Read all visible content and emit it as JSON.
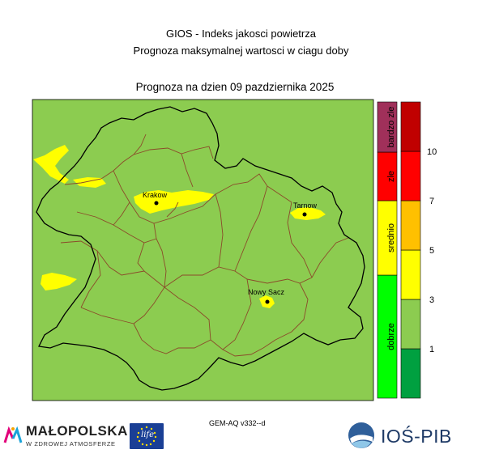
{
  "header": {
    "title_line1": "GIOS - Indeks jakosci powietrza",
    "title_line2": "Prognoza maksymalnej wartosci w ciagu doby",
    "forecast_date": "Prognoza na dzien  09 pazdziernika 2025"
  },
  "map": {
    "background_color": "#8ccc50",
    "zone_color": "#ffff00",
    "cities": [
      {
        "name": "Krakow"
      },
      {
        "name": "Tarnow"
      },
      {
        "name": "Nowy Sacz"
      }
    ]
  },
  "legend": {
    "categories": [
      {
        "label": "dobrze",
        "color": "#00ff00"
      },
      {
        "label": "srednio",
        "color": "#ffff00"
      },
      {
        "label": "zle",
        "color": "#ff0000"
      },
      {
        "label": "bardzo zle",
        "color": "#a0305a"
      }
    ],
    "scale_colors": [
      "#00a040",
      "#8ccc50",
      "#ffff00",
      "#ffc000",
      "#ff0000",
      "#c00000"
    ],
    "tick_labels": [
      "1",
      "3",
      "5",
      "7",
      "10"
    ]
  },
  "footer": {
    "model_version": "GEM-AQ v332--d",
    "logo_malopolska_text": "MAŁOPOLSKA",
    "logo_malopolska_subtitle": "W ZDROWEJ ATMOSFERZE",
    "logo_eu_text": "life",
    "logo_ios_text": "IOŚ-PIB"
  }
}
